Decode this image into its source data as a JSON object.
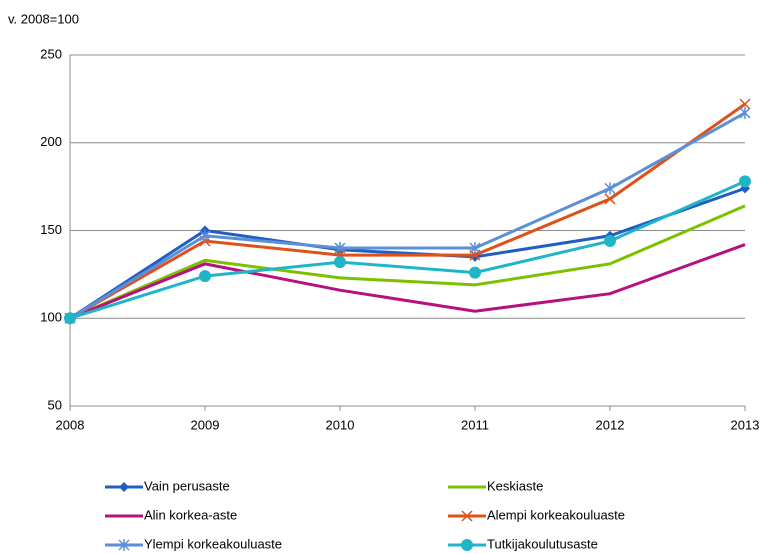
{
  "chart_data": {
    "type": "line",
    "y_label": "v. 2008=100",
    "x": [
      2008,
      2009,
      2010,
      2011,
      2012,
      2013
    ],
    "xlim": [
      2008,
      2013
    ],
    "xticks": [
      2008,
      2009,
      2010,
      2011,
      2012,
      2013
    ],
    "ylim": [
      50,
      250
    ],
    "yticks": [
      50,
      100,
      150,
      200,
      250
    ],
    "grid": true,
    "series": [
      {
        "name": "Vain perusaste",
        "color": "#1f5fc4",
        "marker": "diamond",
        "values": [
          100,
          150,
          139,
          135,
          147,
          174
        ]
      },
      {
        "name": "Keskiaste",
        "color": "#7cc000",
        "marker": "none",
        "values": [
          100,
          133,
          123,
          119,
          131,
          164
        ]
      },
      {
        "name": "Alin korkea-aste",
        "color": "#b5127f",
        "marker": "none",
        "values": [
          100,
          131,
          116,
          104,
          114,
          142
        ]
      },
      {
        "name": "Alempi korkeakouluaste",
        "color": "#e0501a",
        "marker": "x",
        "values": [
          100,
          144,
          136,
          136,
          168,
          222
        ]
      },
      {
        "name": "Ylempi korkeakouluaste",
        "color": "#5b8fd6",
        "marker": "star",
        "values": [
          100,
          147,
          140,
          140,
          174,
          217
        ]
      },
      {
        "name": "Tutkijakoulutusaste",
        "color": "#1fb5c8",
        "marker": "circle",
        "values": [
          100,
          124,
          132,
          126,
          144,
          178
        ]
      }
    ]
  }
}
